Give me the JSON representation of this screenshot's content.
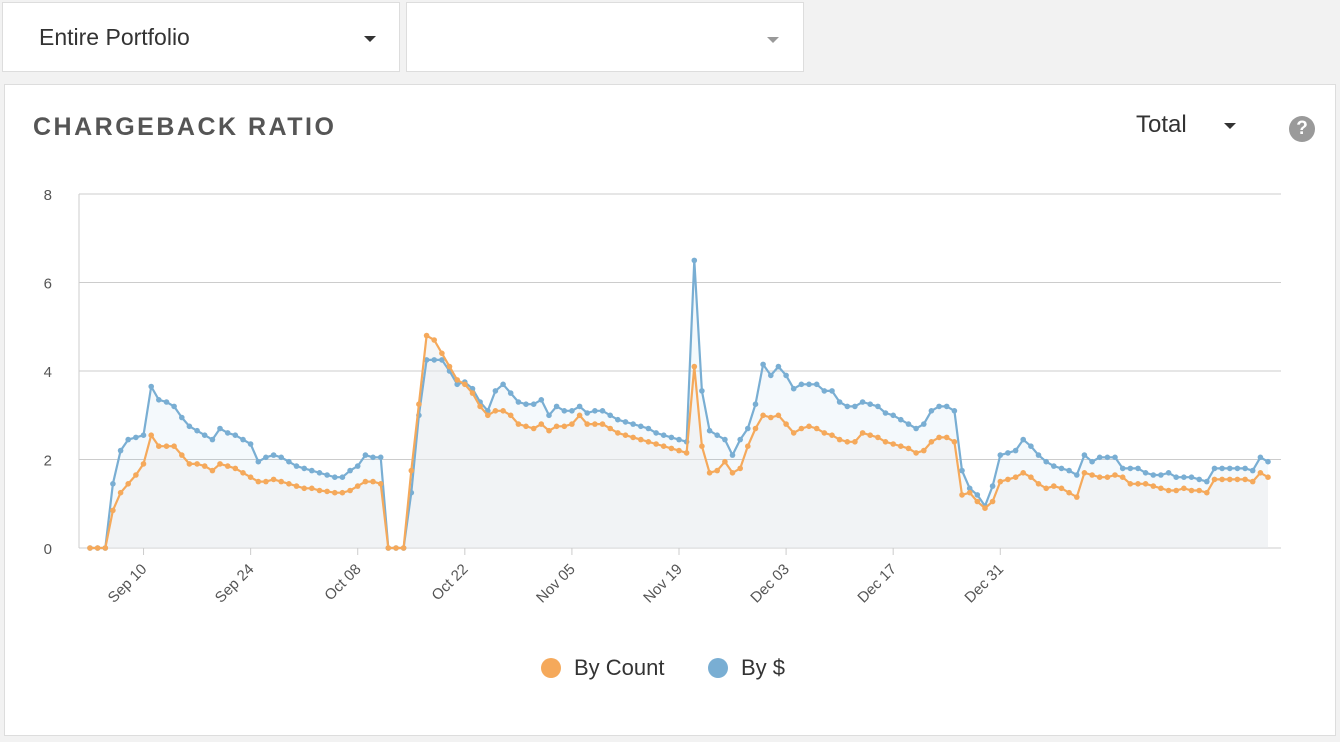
{
  "filters": {
    "portfolio": "Entire Portfolio",
    "secondary": ""
  },
  "card": {
    "title": "CHARGEBACK RATIO",
    "view_select": "Total",
    "help_glyph": "?"
  },
  "colors": {
    "by_count": "#f5a95b",
    "by_dollar": "#79aed3",
    "grid": "#cccccc",
    "area": "#eeeeee"
  },
  "chart_data": {
    "type": "line",
    "x_start": "Sep 03",
    "x_end": "Dec 31",
    "x_tick_labels": [
      "Sep 10",
      "Sep 24",
      "Oct 08",
      "Oct 22",
      "Nov 05",
      "Nov 19",
      "Dec 03",
      "Dec 17",
      "Dec 31"
    ],
    "y_tick_labels": [
      "0",
      "2",
      "4",
      "6",
      "8"
    ],
    "ylim": [
      0,
      8
    ],
    "grid": true,
    "legend_position": "bottom",
    "series": [
      {
        "name": "By Count",
        "color": "#f5a95b",
        "values": [
          0,
          0,
          0,
          0.85,
          1.25,
          1.45,
          1.65,
          1.9,
          2.55,
          2.3,
          2.3,
          2.3,
          2.1,
          1.9,
          1.9,
          1.85,
          1.75,
          1.9,
          1.85,
          1.8,
          1.7,
          1.6,
          1.5,
          1.5,
          1.55,
          1.5,
          1.45,
          1.4,
          1.35,
          1.35,
          1.3,
          1.28,
          1.25,
          1.25,
          1.3,
          1.4,
          1.5,
          1.5,
          1.45,
          0,
          0,
          0,
          1.75,
          3.25,
          4.8,
          4.7,
          4.4,
          4.1,
          3.8,
          3.7,
          3.5,
          3.2,
          3.0,
          3.1,
          3.1,
          3.0,
          2.8,
          2.75,
          2.7,
          2.8,
          2.65,
          2.75,
          2.75,
          2.8,
          3.0,
          2.8,
          2.8,
          2.8,
          2.7,
          2.6,
          2.55,
          2.5,
          2.45,
          2.4,
          2.35,
          2.3,
          2.25,
          2.2,
          2.15,
          4.1,
          2.3,
          1.7,
          1.75,
          1.95,
          1.7,
          1.8,
          2.3,
          2.7,
          3.0,
          2.95,
          3.0,
          2.8,
          2.6,
          2.7,
          2.75,
          2.7,
          2.6,
          2.55,
          2.45,
          2.4,
          2.4,
          2.6,
          2.55,
          2.5,
          2.4,
          2.35,
          2.3,
          2.25,
          2.15,
          2.2,
          2.4,
          2.5,
          2.5,
          2.4,
          1.2,
          1.25,
          1.05,
          0.9,
          1.05,
          1.5,
          1.55,
          1.6,
          1.7,
          1.6,
          1.45,
          1.35,
          1.4,
          1.35,
          1.25,
          1.15,
          1.7,
          1.65,
          1.6,
          1.6,
          1.65,
          1.6,
          1.45,
          1.45,
          1.45,
          1.4,
          1.35,
          1.3,
          1.3,
          1.35,
          1.3,
          1.3,
          1.25,
          1.55,
          1.55,
          1.55,
          1.55,
          1.55,
          1.5,
          1.7,
          1.6
        ]
      },
      {
        "name": "By $",
        "color": "#79aed3",
        "values": [
          0,
          0,
          0,
          1.45,
          2.2,
          2.45,
          2.5,
          2.55,
          3.65,
          3.35,
          3.3,
          3.2,
          2.95,
          2.75,
          2.65,
          2.55,
          2.45,
          2.7,
          2.6,
          2.55,
          2.45,
          2.35,
          1.95,
          2.05,
          2.1,
          2.05,
          1.95,
          1.85,
          1.8,
          1.75,
          1.7,
          1.65,
          1.6,
          1.6,
          1.75,
          1.85,
          2.1,
          2.05,
          2.05,
          0,
          0,
          0,
          1.25,
          3.0,
          4.25,
          4.25,
          4.25,
          4.0,
          3.7,
          3.75,
          3.6,
          3.3,
          3.1,
          3.55,
          3.7,
          3.5,
          3.3,
          3.25,
          3.25,
          3.35,
          3.0,
          3.2,
          3.1,
          3.1,
          3.2,
          3.05,
          3.1,
          3.1,
          3.0,
          2.9,
          2.85,
          2.8,
          2.75,
          2.7,
          2.6,
          2.55,
          2.5,
          2.45,
          2.4,
          6.5,
          3.55,
          2.65,
          2.55,
          2.45,
          2.1,
          2.45,
          2.7,
          3.25,
          4.15,
          3.9,
          4.1,
          3.9,
          3.6,
          3.7,
          3.7,
          3.7,
          3.55,
          3.55,
          3.3,
          3.2,
          3.2,
          3.3,
          3.25,
          3.2,
          3.05,
          3.0,
          2.9,
          2.8,
          2.7,
          2.8,
          3.1,
          3.2,
          3.2,
          3.1,
          1.75,
          1.35,
          1.2,
          0.95,
          1.4,
          2.1,
          2.15,
          2.2,
          2.45,
          2.3,
          2.1,
          1.95,
          1.85,
          1.8,
          1.75,
          1.65,
          2.1,
          1.95,
          2.05,
          2.05,
          2.05,
          1.8,
          1.8,
          1.8,
          1.7,
          1.65,
          1.65,
          1.7,
          1.6,
          1.6,
          1.6,
          1.55,
          1.5,
          1.8,
          1.8,
          1.8,
          1.8,
          1.8,
          1.75,
          2.05,
          1.95
        ]
      }
    ]
  }
}
